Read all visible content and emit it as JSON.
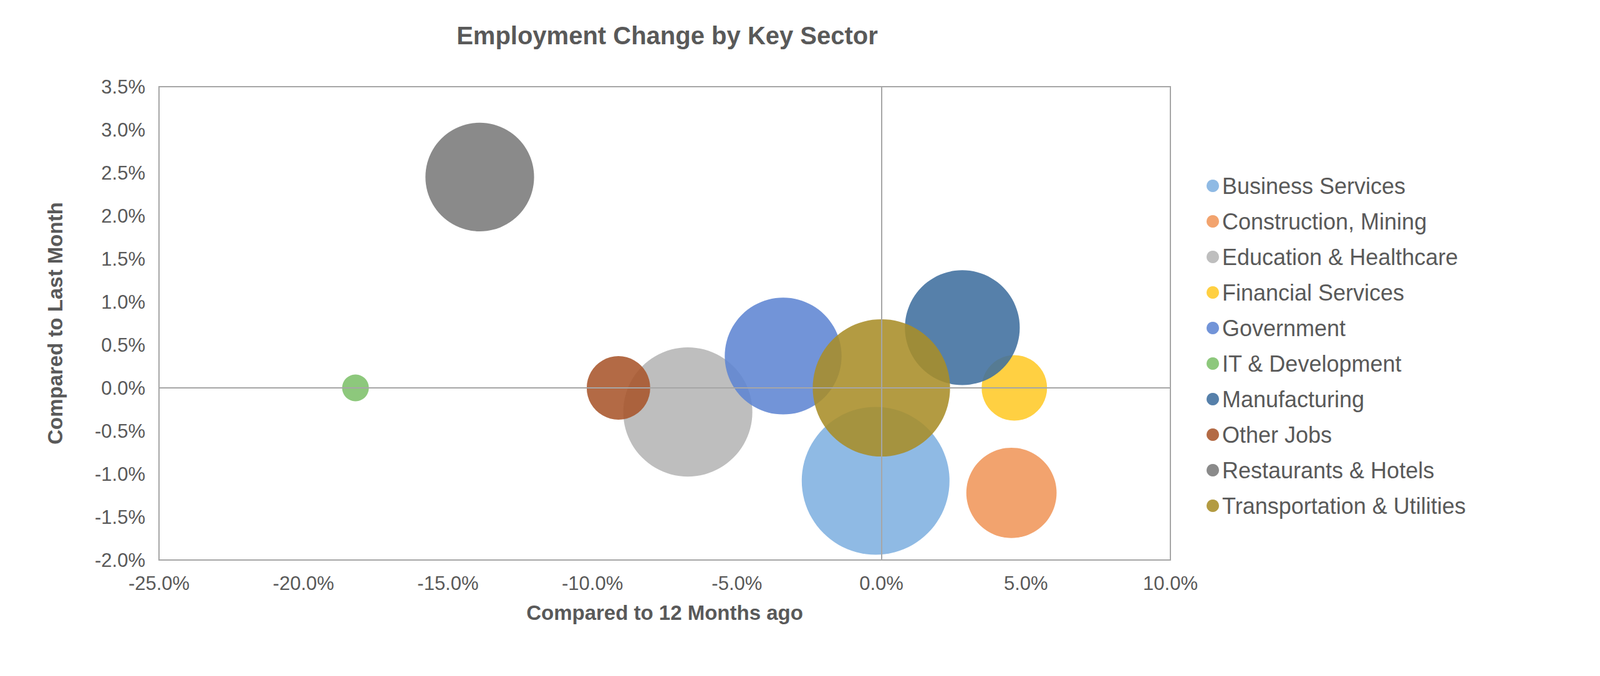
{
  "chart_data": {
    "type": "bubble",
    "title": "Employment Change by Key Sector",
    "x_label": "Compared to 12 Months ago",
    "y_label": "Compared to Last Month",
    "xlim": [
      -25,
      10
    ],
    "xticks": [
      {
        "value": -25,
        "label": "-25.0%"
      },
      {
        "value": -20,
        "label": "-20.0%"
      },
      {
        "value": -15,
        "label": "-15.0%"
      },
      {
        "value": -10,
        "label": "-10.0%"
      },
      {
        "value": -5,
        "label": "-5.0%"
      },
      {
        "value": 0,
        "label": "0.0%"
      },
      {
        "value": 5,
        "label": "5.0%"
      },
      {
        "value": 10,
        "label": "10.0%"
      }
    ],
    "ylim": [
      -2,
      3.5
    ],
    "yticks": [
      {
        "value": -2,
        "label": "-2.0%"
      },
      {
        "value": -1.5,
        "label": "-1.5%"
      },
      {
        "value": -1,
        "label": "-1.0%"
      },
      {
        "value": -0.5,
        "label": "-0.5%"
      },
      {
        "value": 0,
        "label": "0.0%"
      },
      {
        "value": 0.5,
        "label": "0.5%"
      },
      {
        "value": 1,
        "label": "1.0%"
      },
      {
        "value": 1.5,
        "label": "1.5%"
      },
      {
        "value": 2,
        "label": "2.0%"
      },
      {
        "value": 2.5,
        "label": "2.5%"
      },
      {
        "value": 3,
        "label": "3.0%"
      },
      {
        "value": 3.5,
        "label": "3.5%"
      }
    ],
    "grid": false,
    "legend": "right",
    "series": [
      {
        "name": "Business Services",
        "color": "#7fb1e0",
        "x": [
          -0.2
        ],
        "values": [
          -1.08
        ],
        "sizes": [
          52
        ]
      },
      {
        "name": "Construction, Mining",
        "color": "#f0965a",
        "x": [
          4.5
        ],
        "values": [
          -1.22
        ],
        "sizes": [
          19.4
        ]
      },
      {
        "name": "Education & Healthcare",
        "color": "#b5b5b5",
        "x": [
          -6.7
        ],
        "values": [
          -0.28
        ],
        "sizes": [
          39.7
        ]
      },
      {
        "name": "Financial Services",
        "color": "#ffc928",
        "x": [
          4.6
        ],
        "values": [
          0
        ],
        "sizes": [
          10.2
        ]
      },
      {
        "name": "Government",
        "color": "#5f85d3",
        "x": [
          -3.4
        ],
        "values": [
          0.37
        ],
        "sizes": [
          32.5
        ]
      },
      {
        "name": "IT & Development",
        "color": "#7dc06a",
        "x": [
          -18.2
        ],
        "values": [
          0
        ],
        "sizes": [
          1.7
        ]
      },
      {
        "name": "Manufacturing",
        "color": "#3f6e9e",
        "x": [
          2.8
        ],
        "values": [
          0.7
        ],
        "sizes": [
          31.4
        ]
      },
      {
        "name": "Other Jobs",
        "color": "#a9552b",
        "x": [
          -9.1
        ],
        "values": [
          0
        ],
        "sizes": [
          9.6
        ]
      },
      {
        "name": "Restaurants & Hotels",
        "color": "#7a7a7a",
        "x": [
          -13.9
        ],
        "values": [
          2.45
        ],
        "sizes": [
          28.1
        ]
      },
      {
        "name": "Transportation & Utilities",
        "color": "#a88d28",
        "x": [
          0
        ],
        "values": [
          0
        ],
        "sizes": [
          44.9
        ]
      }
    ]
  }
}
